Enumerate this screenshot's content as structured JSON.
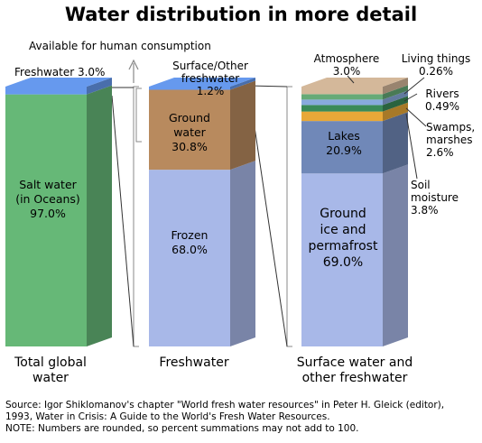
{
  "title": "Water distribution in more detail",
  "note_available": "Available for human consumption",
  "footer": {
    "source_line1": "Source: Igor Shiklomanov's chapter \"World fresh water resources\" in Peter H. Gleick (editor),",
    "source_line2": "1993, Water in Crisis: A Guide to the World's Fresh Water Resources.",
    "note": "NOTE: Numbers are rounded, so percent summations may not add to 100."
  },
  "colors": {
    "salt": "#66b877",
    "freshwater": "#6699ee",
    "ground": "#b88a5e",
    "frozen": "#a8b8e8",
    "ice": "#a8b8e8",
    "lakes": "#7088b8",
    "soil": "#e8a838",
    "swamps": "#3a8a58",
    "rivers": "#88aadd",
    "living": "#66aa77",
    "atmosphere": "#d4b89a"
  },
  "chart_data": {
    "type": "bar",
    "stacked": true,
    "unit": "%",
    "ylim": [
      0,
      100
    ],
    "bars": [
      {
        "name": "Total global\nwater",
        "segments": [
          {
            "key": "salt",
            "label": "Salt water\n(in Oceans)\n97.0%",
            "value": 97.0
          },
          {
            "key": "freshwater",
            "label": "Freshwater 3.0%",
            "value": 3.0
          }
        ]
      },
      {
        "name": "Freshwater",
        "segments": [
          {
            "key": "frozen",
            "label": "Frozen\n68.0%",
            "value": 68.0
          },
          {
            "key": "ground",
            "label": "Ground\nwater\n30.8%",
            "value": 30.8
          },
          {
            "key": "surface",
            "label": "Surface/Other\nfreshwater 1.2%",
            "value": 1.2
          }
        ]
      },
      {
        "name": "Surface water and\nother freshwater",
        "segments": [
          {
            "key": "ice",
            "label": "Ground\nice and\npermafrost\n69.0%",
            "value": 69.0
          },
          {
            "key": "lakes",
            "label": "Lakes\n20.9%",
            "value": 20.9
          },
          {
            "key": "soil",
            "label": "Soil\nmoisture\n3.8%",
            "value": 3.8
          },
          {
            "key": "swamps",
            "label": "Swamps,\nmarshes\n2.6%",
            "value": 2.6
          },
          {
            "key": "rivers",
            "label": "Rivers\n0.49%",
            "value": 0.49
          },
          {
            "key": "living",
            "label": "Living things\n0.26%",
            "value": 0.26
          },
          {
            "key": "atmosphere",
            "label": "Atmosphere\n3.0%",
            "value": 3.0
          }
        ]
      }
    ]
  }
}
